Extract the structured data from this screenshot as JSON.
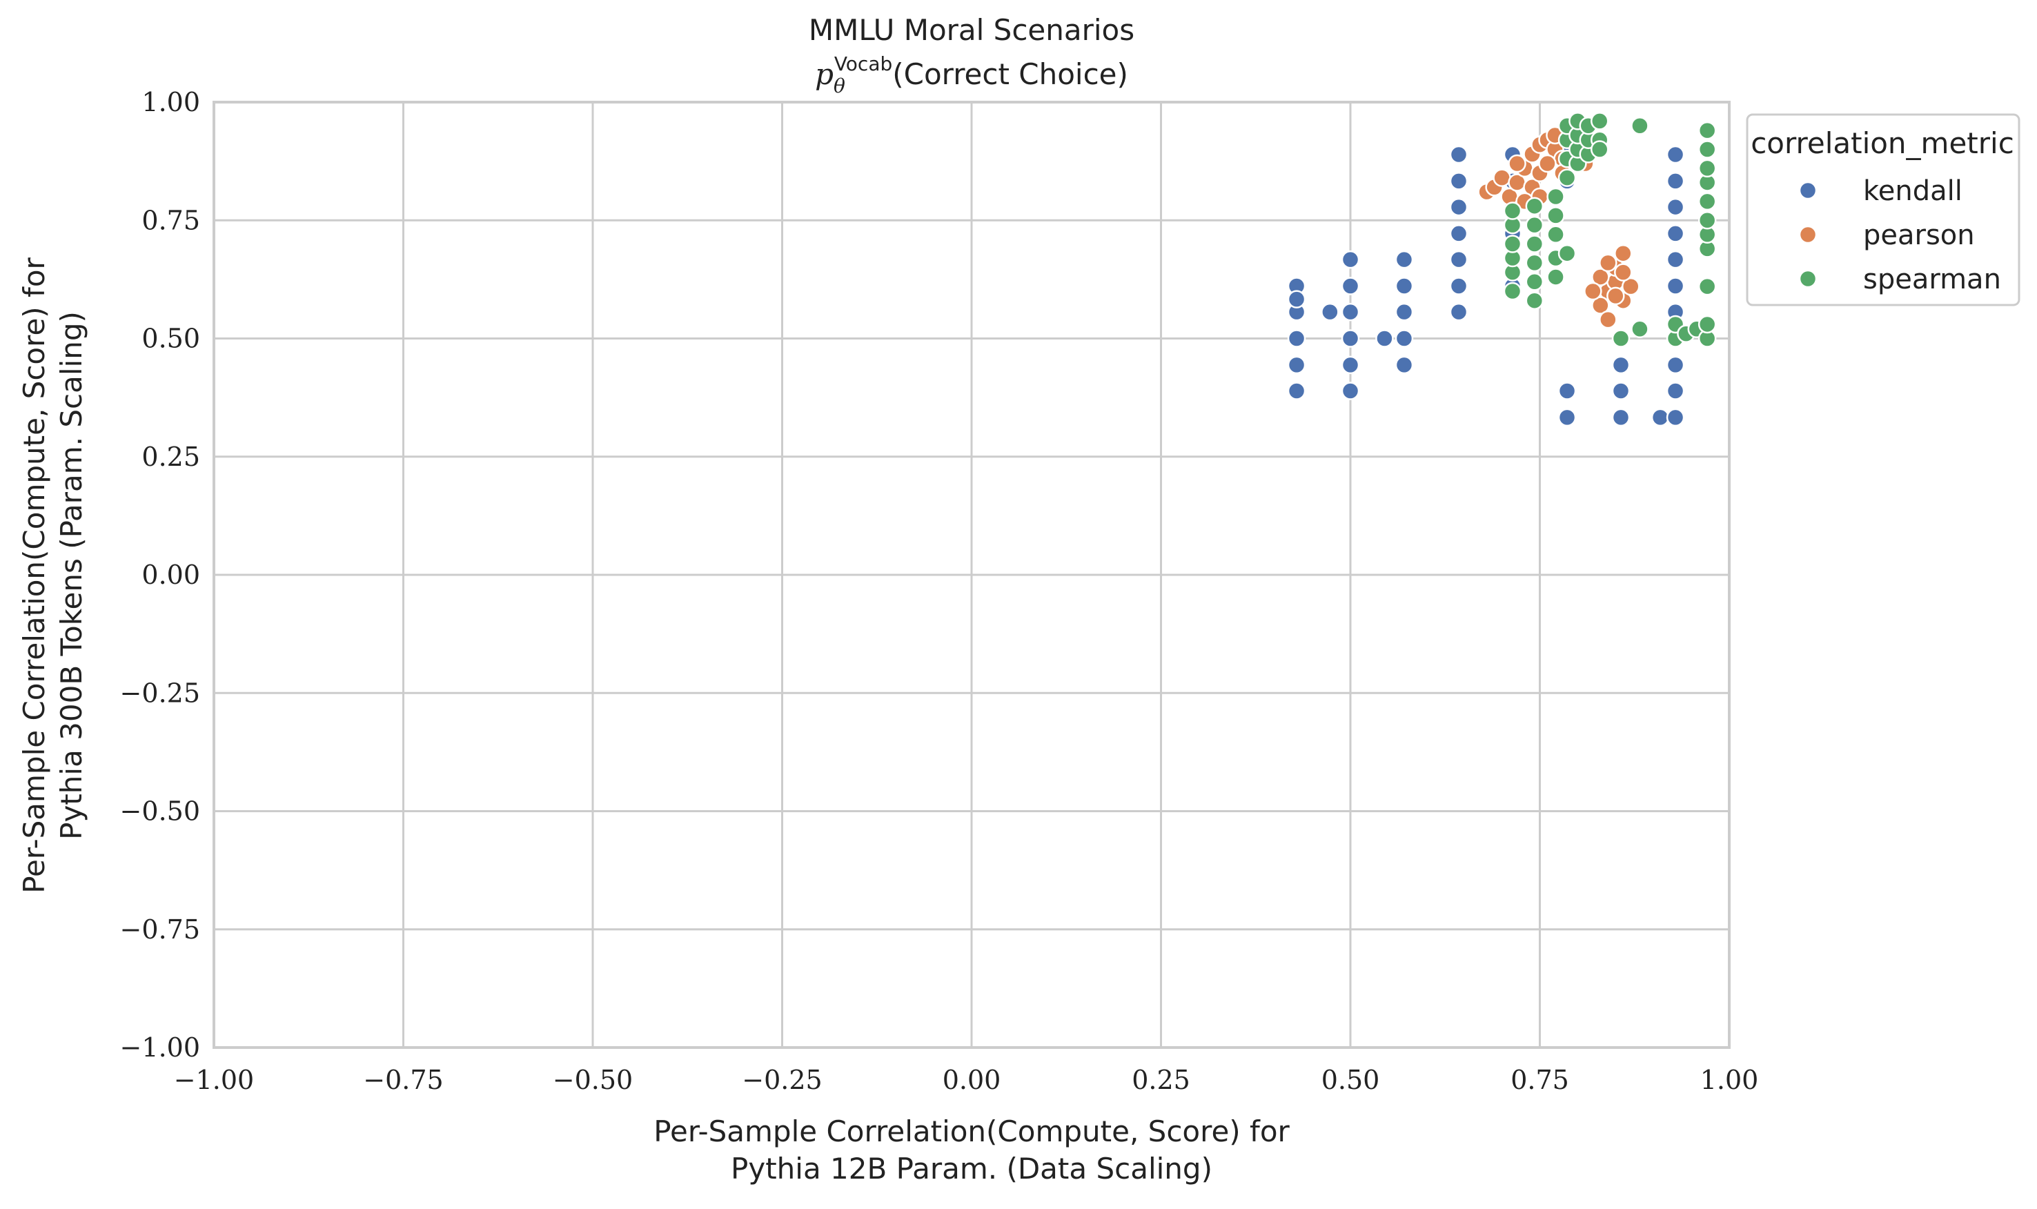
{
  "chart_data": {
    "type": "scatter",
    "title": "MMLU Moral Scenarios",
    "subtitle_prefix": "p",
    "subtitle_superscript": "Vocab",
    "subtitle_subscript": "θ",
    "subtitle_suffix": "(Correct Choice)",
    "xlabel_line1": "Per-Sample Correlation(Compute, Score) for",
    "xlabel_line2": "Pythia 12B Param. (Data Scaling)",
    "ylabel_line1": "Per-Sample Correlation(Compute, Score) for",
    "ylabel_line2": "Pythia 300B Tokens (Param. Scaling)",
    "xlim": [
      -1.0,
      1.0
    ],
    "ylim": [
      -1.0,
      1.0
    ],
    "xticks": [
      "−1.00",
      "−0.75",
      "−0.50",
      "−0.25",
      "0.00",
      "0.25",
      "0.50",
      "0.75",
      "1.00"
    ],
    "xtick_values": [
      -1.0,
      -0.75,
      -0.5,
      -0.25,
      0.0,
      0.25,
      0.5,
      0.75,
      1.0
    ],
    "yticks": [
      "−1.00",
      "−0.75",
      "−0.50",
      "−0.25",
      "0.00",
      "0.25",
      "0.50",
      "0.75",
      "1.00"
    ],
    "ytick_values": [
      -1.0,
      -0.75,
      -0.5,
      -0.25,
      0.0,
      0.25,
      0.5,
      0.75,
      1.0
    ],
    "grid": true,
    "legend_title": "correlation_metric",
    "legend_position": "outside-right-top",
    "series": [
      {
        "name": "kendall",
        "color": "#4c72b0",
        "points": [
          [
            0.429,
            0.389
          ],
          [
            0.429,
            0.444
          ],
          [
            0.429,
            0.5
          ],
          [
            0.429,
            0.556
          ],
          [
            0.429,
            0.556
          ],
          [
            0.429,
            0.611
          ],
          [
            0.429,
            0.583
          ],
          [
            0.5,
            0.389
          ],
          [
            0.5,
            0.444
          ],
          [
            0.5,
            0.5
          ],
          [
            0.5,
            0.556
          ],
          [
            0.5,
            0.611
          ],
          [
            0.5,
            0.667
          ],
          [
            0.473,
            0.556
          ],
          [
            0.545,
            0.5
          ],
          [
            0.571,
            0.444
          ],
          [
            0.571,
            0.5
          ],
          [
            0.571,
            0.556
          ],
          [
            0.571,
            0.611
          ],
          [
            0.571,
            0.667
          ],
          [
            0.643,
            0.556
          ],
          [
            0.643,
            0.611
          ],
          [
            0.643,
            0.667
          ],
          [
            0.643,
            0.722
          ],
          [
            0.643,
            0.778
          ],
          [
            0.643,
            0.833
          ],
          [
            0.643,
            0.889
          ],
          [
            0.714,
            0.611
          ],
          [
            0.714,
            0.667
          ],
          [
            0.714,
            0.722
          ],
          [
            0.714,
            0.778
          ],
          [
            0.714,
            0.833
          ],
          [
            0.714,
            0.889
          ],
          [
            0.786,
            0.333
          ],
          [
            0.786,
            0.389
          ],
          [
            0.786,
            0.833
          ],
          [
            0.786,
            0.889
          ],
          [
            0.857,
            0.333
          ],
          [
            0.857,
            0.389
          ],
          [
            0.857,
            0.444
          ],
          [
            0.909,
            0.333
          ],
          [
            0.929,
            0.333
          ],
          [
            0.929,
            0.389
          ],
          [
            0.929,
            0.444
          ],
          [
            0.929,
            0.5
          ],
          [
            0.929,
            0.556
          ],
          [
            0.929,
            0.611
          ],
          [
            0.929,
            0.667
          ],
          [
            0.929,
            0.722
          ],
          [
            0.929,
            0.778
          ],
          [
            0.929,
            0.833
          ],
          [
            0.929,
            0.889
          ]
        ]
      },
      {
        "name": "pearson",
        "color": "#dd8452",
        "points": [
          [
            0.68,
            0.81
          ],
          [
            0.69,
            0.82
          ],
          [
            0.7,
            0.84
          ],
          [
            0.71,
            0.8
          ],
          [
            0.72,
            0.83
          ],
          [
            0.73,
            0.86
          ],
          [
            0.74,
            0.82
          ],
          [
            0.75,
            0.85
          ],
          [
            0.74,
            0.89
          ],
          [
            0.75,
            0.91
          ],
          [
            0.76,
            0.92
          ],
          [
            0.77,
            0.9
          ],
          [
            0.78,
            0.88
          ],
          [
            0.76,
            0.87
          ],
          [
            0.79,
            0.92
          ],
          [
            0.8,
            0.89
          ],
          [
            0.78,
            0.85
          ],
          [
            0.73,
            0.79
          ],
          [
            0.81,
            0.87
          ],
          [
            0.75,
            0.8
          ],
          [
            0.72,
            0.87
          ],
          [
            0.77,
            0.93
          ],
          [
            0.82,
            0.9
          ],
          [
            0.84,
            0.6
          ],
          [
            0.85,
            0.62
          ],
          [
            0.86,
            0.58
          ],
          [
            0.83,
            0.57
          ],
          [
            0.85,
            0.65
          ],
          [
            0.86,
            0.68
          ],
          [
            0.84,
            0.54
          ],
          [
            0.87,
            0.61
          ],
          [
            0.83,
            0.63
          ],
          [
            0.85,
            0.59
          ],
          [
            0.86,
            0.64
          ],
          [
            0.84,
            0.66
          ],
          [
            0.82,
            0.6
          ]
        ]
      },
      {
        "name": "spearman",
        "color": "#55a868",
        "points": [
          [
            0.714,
            0.6
          ],
          [
            0.714,
            0.64
          ],
          [
            0.714,
            0.67
          ],
          [
            0.714,
            0.7
          ],
          [
            0.714,
            0.74
          ],
          [
            0.714,
            0.77
          ],
          [
            0.743,
            0.58
          ],
          [
            0.743,
            0.62
          ],
          [
            0.743,
            0.66
          ],
          [
            0.743,
            0.7
          ],
          [
            0.743,
            0.74
          ],
          [
            0.743,
            0.78
          ],
          [
            0.771,
            0.63
          ],
          [
            0.771,
            0.67
          ],
          [
            0.771,
            0.72
          ],
          [
            0.771,
            0.76
          ],
          [
            0.771,
            0.8
          ],
          [
            0.786,
            0.68
          ],
          [
            0.786,
            0.84
          ],
          [
            0.786,
            0.88
          ],
          [
            0.786,
            0.92
          ],
          [
            0.786,
            0.95
          ],
          [
            0.8,
            0.87
          ],
          [
            0.8,
            0.9
          ],
          [
            0.8,
            0.93
          ],
          [
            0.8,
            0.96
          ],
          [
            0.814,
            0.89
          ],
          [
            0.814,
            0.92
          ],
          [
            0.814,
            0.95
          ],
          [
            0.829,
            0.92
          ],
          [
            0.829,
            0.96
          ],
          [
            0.829,
            0.9
          ],
          [
            0.857,
            0.5
          ],
          [
            0.882,
            0.52
          ],
          [
            0.882,
            0.95
          ],
          [
            0.929,
            0.5
          ],
          [
            0.929,
            0.53
          ],
          [
            0.943,
            0.51
          ],
          [
            0.957,
            0.52
          ],
          [
            0.971,
            0.5
          ],
          [
            0.971,
            0.53
          ],
          [
            0.971,
            0.61
          ],
          [
            0.971,
            0.69
          ],
          [
            0.971,
            0.72
          ],
          [
            0.971,
            0.75
          ],
          [
            0.971,
            0.79
          ],
          [
            0.971,
            0.83
          ],
          [
            0.971,
            0.86
          ],
          [
            0.971,
            0.9
          ],
          [
            0.971,
            0.94
          ]
        ]
      }
    ]
  }
}
